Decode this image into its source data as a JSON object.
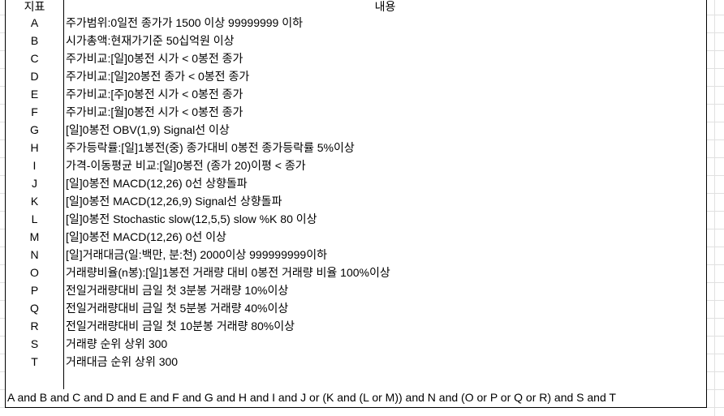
{
  "header": {
    "key_col": "지표",
    "content_col": "내용"
  },
  "rows": [
    {
      "key": "A",
      "text": "주가범위:0일전 종가가 1500 이상 99999999 이하"
    },
    {
      "key": "B",
      "text": "시가총액:현재가기준 50십억원 이상"
    },
    {
      "key": "C",
      "text": "주가비교:[일]0봉전 시가 < 0봉전 종가"
    },
    {
      "key": "D",
      "text": "주가비교:[일]20봉전 종가 < 0봉전 종가"
    },
    {
      "key": "E",
      "text": "주가비교:[주]0봉전 시가 < 0봉전 종가"
    },
    {
      "key": "F",
      "text": "주가비교:[월]0봉전 시가 < 0봉전 종가"
    },
    {
      "key": "G",
      "text": "[일]0봉전 OBV(1,9) Signal선 이상"
    },
    {
      "key": "H",
      "text": "주가등락률:[일]1봉전(중) 종가대비 0봉전 종가등락률 5%이상"
    },
    {
      "key": "I",
      "text": "가격-이동평균 비교:[일]0봉전 (종가 20)이평 < 종가"
    },
    {
      "key": "J",
      "text": "[일]0봉전 MACD(12,26) 0선 상향돌파"
    },
    {
      "key": "K",
      "text": "[일]0봉전 MACD(12,26,9) Signal선 상향돌파"
    },
    {
      "key": "L",
      "text": "[일]0봉전 Stochastic slow(12,5,5) slow %K 80 이상"
    },
    {
      "key": "M",
      "text": "[일]0봉전 MACD(12,26) 0선 이상"
    },
    {
      "key": "N",
      "text": "[일]거래대금(일:백만, 분:천) 2000이상 999999999이하"
    },
    {
      "key": "O",
      "text": "거래량비율(n봉):[일]1봉전 거래량 대비 0봉전 거래량 비율 100%이상"
    },
    {
      "key": "P",
      "text": "전일거래량대비 금일 첫 3분봉 거래량 10%이상"
    },
    {
      "key": "Q",
      "text": "전일거래량대비 금일 첫 5분봉 거래량 40%이상"
    },
    {
      "key": "R",
      "text": "전일거래량대비 금일 첫 10분봉 거래량 80%이상"
    },
    {
      "key": "S",
      "text": "거래량 순위 상위 300"
    },
    {
      "key": "T",
      "text": "거래대금 순위 상위 300"
    },
    {
      "key": "",
      "text": ""
    }
  ],
  "formula": "A and B and C and D and E and F and G and H and I and J or (K and (L or M)) and N and (O or P or Q or R) and S and T"
}
